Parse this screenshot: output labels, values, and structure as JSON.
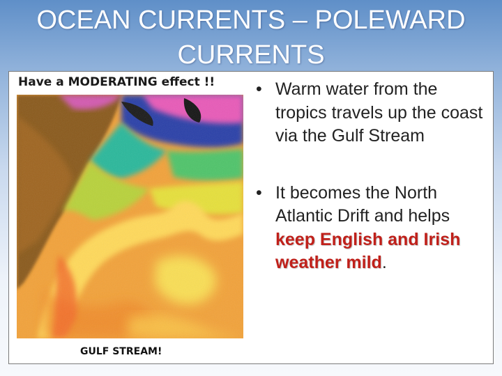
{
  "slide": {
    "title": "OCEAN CURRENTS – POLEWARD CURRENTS"
  },
  "map": {
    "heading": "Have a MODERATING effect !!",
    "caption": "GULF STREAM!"
  },
  "bullets": [
    {
      "text": "Warm water from the tropics travels up the coast via the Gulf Stream"
    },
    {
      "text_before": "It becomes the North Atlantic Drift and helps ",
      "emphasis": "keep English and Irish weather mild",
      "text_after": "."
    }
  ],
  "colors": {
    "title_text": "#ffffff",
    "emphasis_text": "#c0201a"
  },
  "icons": {
    "bullet": "bullet-dot-icon"
  }
}
